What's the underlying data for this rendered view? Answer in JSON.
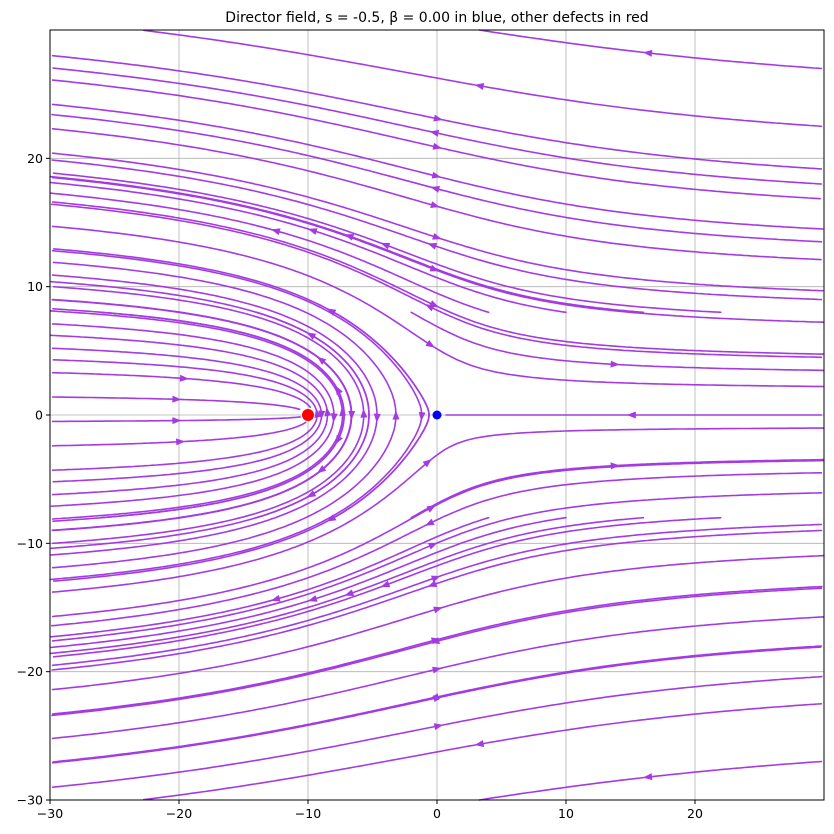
{
  "chart_data": {
    "type": "streamplot",
    "title": "Director field, s = -0.5, β = 0.00 in blue, other defects in red",
    "xlabel": "",
    "ylabel": "",
    "xlim": [
      -30,
      30
    ],
    "ylim": [
      -30,
      30
    ],
    "xticks": [
      -30,
      -20,
      -10,
      0,
      10,
      20
    ],
    "yticks": [
      -30,
      -20,
      -10,
      0,
      10,
      20
    ],
    "xtick_labels": [
      "−30",
      "−20",
      "−10",
      "0",
      "10",
      "20"
    ],
    "ytick_labels": [
      "−30",
      "−20",
      "−10",
      "0",
      "10",
      "20"
    ],
    "grid": true,
    "stream_color": "#a43be2",
    "field": {
      "primary_defect": {
        "x": 0,
        "y": 0,
        "charge": -0.5,
        "beta": 0.0,
        "color": "#0000ff"
      },
      "other_defects": [
        {
          "x": -10,
          "y": 0,
          "charge": 0.5,
          "color": "#ff0000"
        }
      ]
    }
  }
}
